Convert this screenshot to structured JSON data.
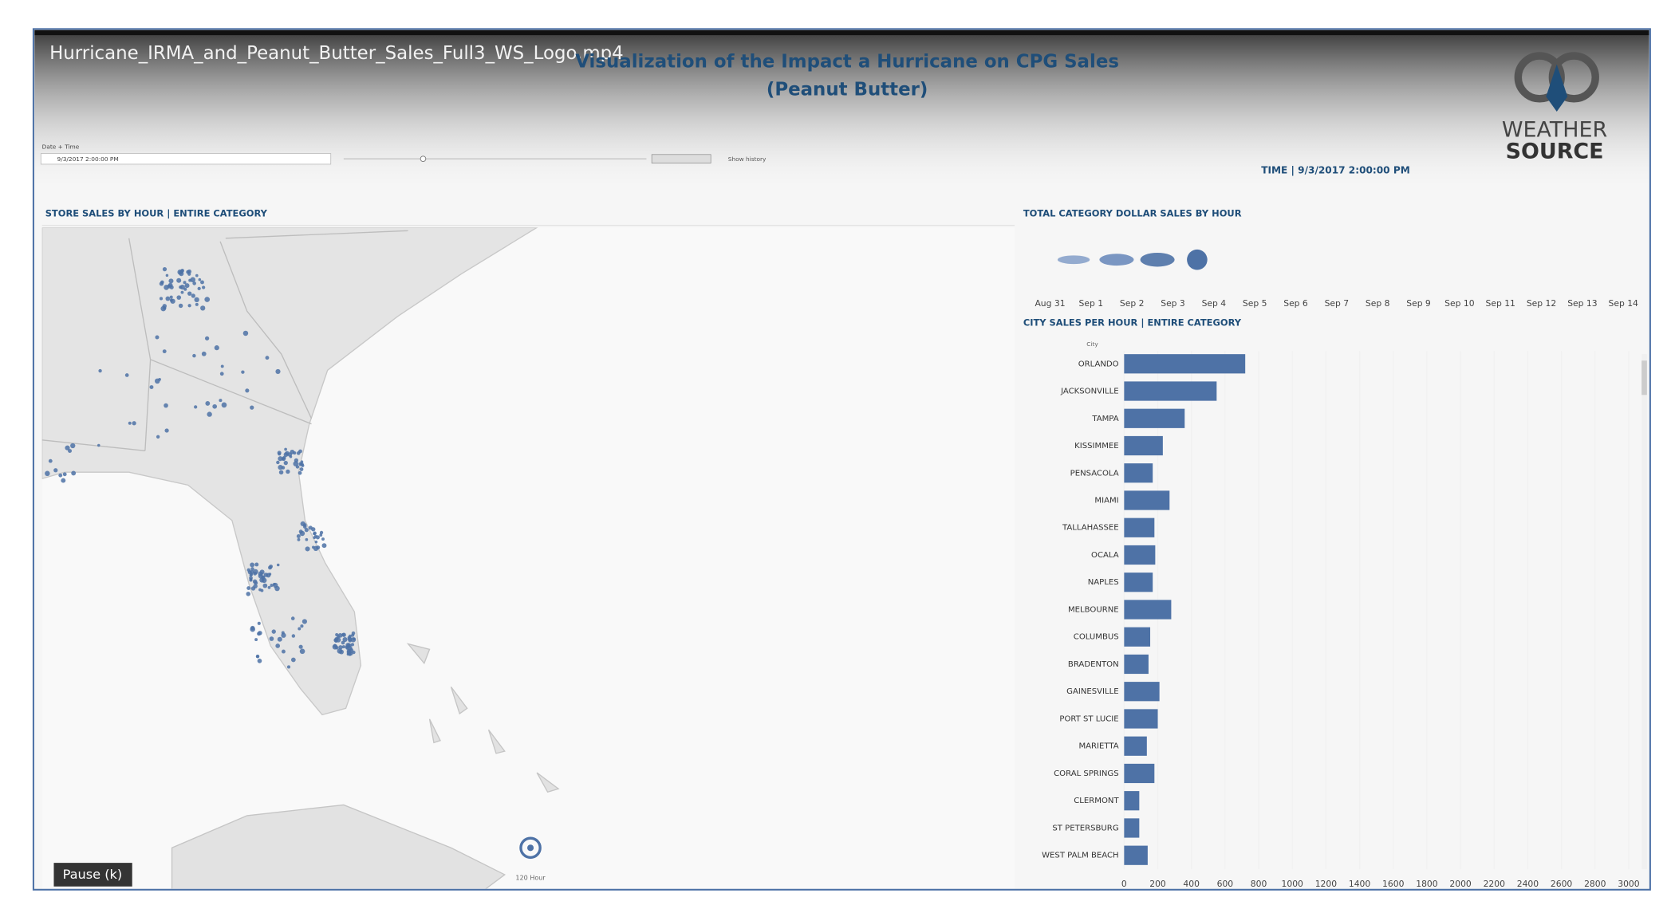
{
  "video": {
    "filename": "Hurricane_IRMA_and_Peanut_Butter_Sales_Full3_WS_Logo.mp4",
    "pause_button": "Pause (k)"
  },
  "header": {
    "title": "Visualization of the Impact a Hurricane on CPG Sales",
    "subtitle": "(Peanut Butter)",
    "logo_top": "WEATHER",
    "logo_bottom": "SOURCE",
    "time_label": "TIME | 9/3/2017 2:00:00 PM"
  },
  "controls": {
    "label": "Date + Time",
    "value": "9/3/2017 2:00:00 PM",
    "history": "Show history"
  },
  "map": {
    "title": "STORE SALES BY HOUR | ENTIRE CATEGORY",
    "storm_label": "120 Hour"
  },
  "timeline": {
    "title": "TOTAL CATEGORY DOLLAR SALES BY HOUR",
    "dates": [
      "Aug 31",
      "Sep 1",
      "Sep 2",
      "Sep 3",
      "Sep 4",
      "Sep 5",
      "Sep 6",
      "Sep 7",
      "Sep 8",
      "Sep 9",
      "Sep 10",
      "Sep 11",
      "Sep 12",
      "Sep 13",
      "Sep 14"
    ]
  },
  "bar_chart": {
    "type": "bar",
    "title": "CITY SALES PER HOUR | ENTIRE CATEGORY",
    "axis_label": "City",
    "categories": [
      "ORLANDO",
      "JACKSONVILLE",
      "TAMPA",
      "KISSIMMEE",
      "PENSACOLA",
      "MIAMI",
      "TALLAHASSEE",
      "OCALA",
      "NAPLES",
      "MELBOURNE",
      "COLUMBUS",
      "BRADENTON",
      "GAINESVILLE",
      "PORT ST LUCIE",
      "MARIETTA",
      "CORAL SPRINGS",
      "CLERMONT",
      "ST PETERSBURG",
      "WEST PALM BEACH"
    ],
    "values": [
      720,
      550,
      360,
      230,
      170,
      270,
      180,
      185,
      170,
      280,
      155,
      145,
      210,
      200,
      135,
      180,
      90,
      90,
      140
    ],
    "xlim": [
      0,
      3000
    ],
    "xticks": [
      0,
      200,
      400,
      600,
      800,
      1000,
      1200,
      1400,
      1600,
      1800,
      2000,
      2200,
      2400,
      2600,
      2800,
      3000
    ],
    "color": "#4e72a6",
    "grid": true
  }
}
